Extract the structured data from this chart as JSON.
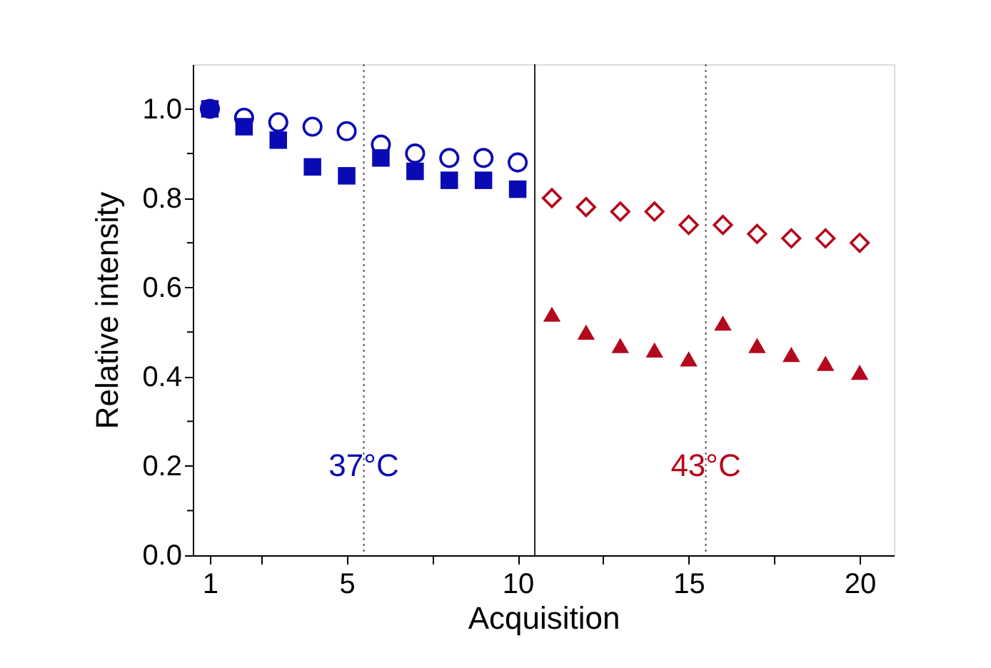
{
  "chart_data": {
    "type": "scatter",
    "xlabel": "Acquisition",
    "ylabel": "Relative intensity",
    "xlim": [
      0.5,
      21
    ],
    "ylim": [
      0,
      1.1
    ],
    "xticks": [
      1,
      {
        "value": 2.5,
        "label": null
      },
      5,
      {
        "value": 7.5,
        "label": null
      },
      10,
      {
        "value": 12.5,
        "label": null
      },
      15,
      {
        "value": 17.5,
        "label": null
      },
      20
    ],
    "yticks": [
      {
        "value": 0,
        "label": "0.0"
      },
      {
        "value": 0.1,
        "label": null
      },
      {
        "value": 0.2,
        "label": "0.2"
      },
      {
        "value": 0.3,
        "label": null
      },
      {
        "value": 0.4,
        "label": "0.4"
      },
      {
        "value": 0.5,
        "label": null
      },
      {
        "value": 0.6,
        "label": "0.6"
      },
      {
        "value": 0.7,
        "label": null
      },
      {
        "value": 0.8,
        "label": "0.8"
      },
      {
        "value": 0.9,
        "label": null
      },
      {
        "value": 1.0,
        "label": "1.0"
      }
    ],
    "grid": false,
    "series": [
      {
        "color": "#0a0ab4",
        "marker": "circle",
        "x": [
          1,
          2,
          3,
          4,
          5,
          6,
          7,
          8,
          9,
          10
        ],
        "values": [
          1.0,
          0.98,
          0.97,
          0.96,
          0.95,
          0.92,
          0.9,
          0.89,
          0.89,
          0.88
        ]
      },
      {
        "color": "#0a0ab4",
        "marker": "square",
        "x": [
          1,
          2,
          3,
          4,
          5,
          6,
          7,
          8,
          9,
          10
        ],
        "values": [
          1.0,
          0.96,
          0.93,
          0.87,
          0.85,
          0.89,
          0.86,
          0.84,
          0.84,
          0.82
        ]
      },
      {
        "color": "#b4081c",
        "marker": "diamond",
        "x": [
          11,
          12,
          13,
          14,
          15,
          16,
          17,
          18,
          19,
          20
        ],
        "values": [
          0.8,
          0.78,
          0.77,
          0.77,
          0.74,
          0.74,
          0.72,
          0.71,
          0.71,
          0.7
        ]
      },
      {
        "color": "#b4081c",
        "marker": "triangle",
        "x": [
          11,
          12,
          13,
          14,
          15,
          16,
          17,
          18,
          19,
          20
        ],
        "values": [
          0.54,
          0.5,
          0.47,
          0.46,
          0.44,
          0.52,
          0.47,
          0.45,
          0.43,
          0.41
        ]
      }
    ],
    "ref_lines": [
      {
        "axis": "x",
        "value": 5.5,
        "line_style": "dotted",
        "color": "#555555"
      },
      {
        "axis": "x",
        "value": 10.5,
        "line_style": "solid",
        "color": "#222222"
      },
      {
        "axis": "x",
        "value": 15.5,
        "line_style": "dotted",
        "color": "#555555"
      }
    ],
    "annotations": [
      {
        "text": "37°C",
        "x": 5.5,
        "y": 0.2
      },
      {
        "text": "43°C",
        "x": 15.5,
        "y": 0.2
      }
    ]
  }
}
